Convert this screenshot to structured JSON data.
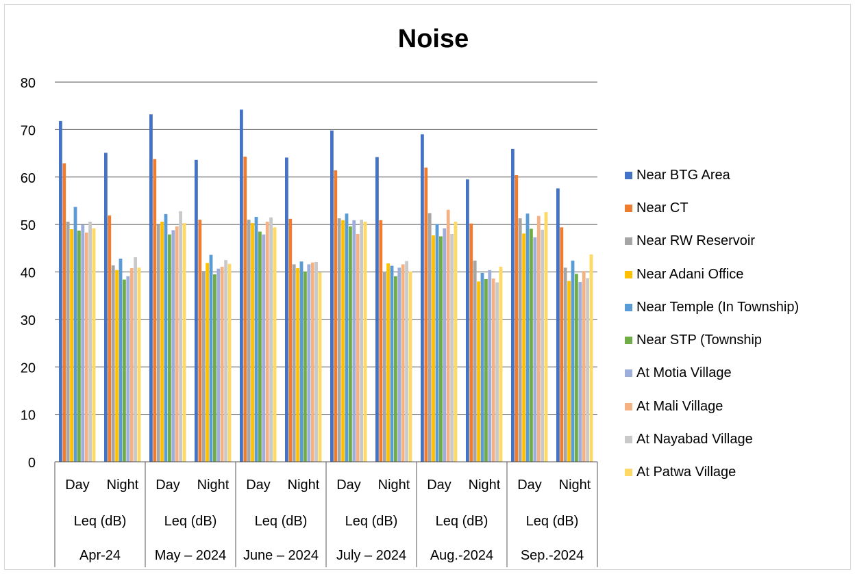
{
  "chart_data": {
    "type": "bar",
    "title": "Noise",
    "ylim": [
      0,
      80
    ],
    "yticks": [
      0,
      10,
      20,
      30,
      40,
      50,
      60,
      70,
      80
    ],
    "grid": true,
    "legend_position": "right",
    "category_levels": {
      "periods": [
        "Day",
        "Night",
        "Day",
        "Night",
        "Day",
        "Night",
        "Day",
        "Night",
        "Day",
        "Night",
        "Day",
        "Night"
      ],
      "metric": [
        "Leq (dB)",
        "Leq (dB)",
        "Leq (dB)",
        "Leq (dB)",
        "Leq (dB)",
        "Leq (dB)"
      ],
      "months": [
        "Apr-24",
        "May – 2024",
        "June – 2024",
        "July – 2024",
        "Aug.-2024",
        "Sep.-2024"
      ]
    },
    "categories": [
      "Apr-24 Day",
      "Apr-24 Night",
      "May – 2024 Day",
      "May – 2024 Night",
      "June – 2024 Day",
      "June – 2024 Night",
      "July – 2024 Day",
      "July – 2024 Night",
      "Aug.-2024 Day",
      "Aug.-2024 Night",
      "Sep.-2024 Day",
      "Sep.-2024 Night"
    ],
    "series": [
      {
        "name": "Near BTG Area",
        "color": "#4472C4",
        "values": [
          71.8,
          65.1,
          73.2,
          63.6,
          74.2,
          64.1,
          69.8,
          64.2,
          69.0,
          59.5,
          65.9,
          57.6
        ]
      },
      {
        "name": "Near CT",
        "color": "#ED7D31",
        "values": [
          62.9,
          51.9,
          63.8,
          51.0,
          64.3,
          51.2,
          61.4,
          50.9,
          62.0,
          50.2,
          60.4,
          49.4
        ]
      },
      {
        "name": "Near RW Reservoir",
        "color": "#A5A5A5",
        "values": [
          50.6,
          41.4,
          49.9,
          40.2,
          51.0,
          41.6,
          51.3,
          40.1,
          52.4,
          42.4,
          51.3,
          40.9
        ]
      },
      {
        "name": "Near Adani Office",
        "color": "#FFC000",
        "values": [
          49.0,
          40.4,
          50.6,
          41.9,
          50.3,
          40.8,
          50.9,
          41.8,
          47.7,
          38.0,
          48.1,
          38.1
        ]
      },
      {
        "name": "Near Temple (In Township)",
        "color": "#5B9BD5",
        "values": [
          53.7,
          42.8,
          52.2,
          43.6,
          51.6,
          42.2,
          52.3,
          41.3,
          50.1,
          39.8,
          52.3,
          42.4
        ]
      },
      {
        "name": "Near STP (Township",
        "color": "#70AD47",
        "values": [
          48.7,
          38.4,
          47.9,
          39.5,
          48.5,
          40.1,
          49.6,
          39.1,
          47.5,
          38.5,
          49.1,
          39.6
        ]
      },
      {
        "name": "At Motia Village",
        "color": "#9DAEDB",
        "values": [
          49.9,
          39.1,
          48.8,
          40.7,
          47.9,
          41.6,
          50.9,
          40.9,
          49.2,
          40.4,
          47.3,
          37.9
        ]
      },
      {
        "name": "At Mali Village",
        "color": "#F4B183",
        "values": [
          48.3,
          40.8,
          49.6,
          41.1,
          50.6,
          42.0,
          48.0,
          41.6,
          53.1,
          38.6,
          51.8,
          40.2
        ]
      },
      {
        "name": "At Nayabad Village",
        "color": "#C9C9C9",
        "values": [
          50.6,
          43.1,
          52.8,
          42.5,
          51.5,
          42.1,
          51.0,
          42.3,
          48.0,
          37.8,
          48.9,
          38.7
        ]
      },
      {
        "name": "At Patwa Village",
        "color": "#FFD966",
        "values": [
          49.2,
          40.9,
          50.3,
          41.7,
          49.4,
          39.9,
          50.6,
          40.1,
          50.6,
          41.1,
          52.6,
          43.7
        ]
      }
    ]
  }
}
